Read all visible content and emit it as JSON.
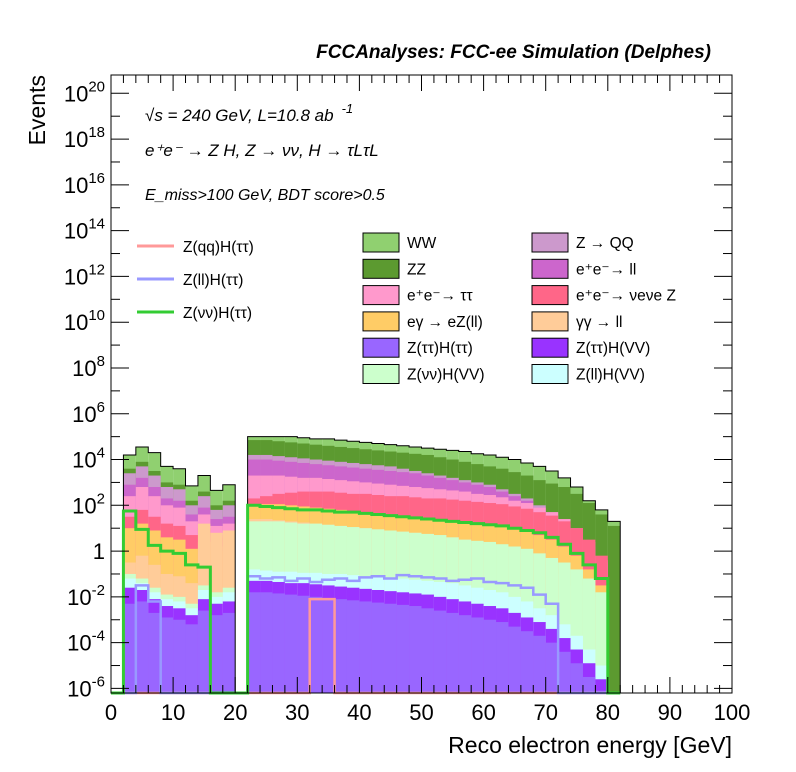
{
  "chart_data": {
    "type": "stacked-histogram",
    "header": "FCCAnalyses: FCC-ee Simulation (Delphes)",
    "xlabel": "Reco electron energy [GeV]",
    "ylabel": "Events",
    "xlim": [
      0,
      100
    ],
    "ylim_log10": [
      -6.2,
      20.8
    ],
    "yscale": "log",
    "bin_width": 2,
    "x_ticks": [
      0,
      10,
      20,
      30,
      40,
      50,
      60,
      70,
      80,
      90,
      100
    ],
    "x_tick_labels": [
      "0",
      "10",
      "20",
      "30",
      "40",
      "50",
      "60",
      "70",
      "80",
      "90",
      "100"
    ],
    "y_ticks": [
      {
        "exp": -6,
        "base": "10",
        "sup": "-6"
      },
      {
        "exp": -4,
        "base": "10",
        "sup": "-4"
      },
      {
        "exp": -2,
        "base": "10",
        "sup": "-2"
      },
      {
        "exp": 0,
        "base": "1",
        "sup": ""
      },
      {
        "exp": 2,
        "base": "10",
        "sup": "2"
      },
      {
        "exp": 4,
        "base": "10",
        "sup": "4"
      },
      {
        "exp": 6,
        "base": "10",
        "sup": "6"
      },
      {
        "exp": 8,
        "base": "10",
        "sup": "8"
      },
      {
        "exp": 10,
        "base": "10",
        "sup": "10"
      },
      {
        "exp": 12,
        "base": "10",
        "sup": "12"
      },
      {
        "exp": 14,
        "base": "10",
        "sup": "14"
      },
      {
        "exp": 16,
        "base": "10",
        "sup": "16"
      },
      {
        "exp": 18,
        "base": "10",
        "sup": "18"
      },
      {
        "exp": 20,
        "base": "10",
        "sup": "20"
      }
    ],
    "annotations": {
      "sqrt_s": "√s = 240 GeV, L=10.8 ab",
      "sqrt_s_sup": "-1",
      "process": "e⁺e⁻ → Z H, Z → νν, H → τLτL",
      "selection": "E_miss>100 GeV, BDT score>0.5"
    },
    "stack_envelope_log10": [
      -8,
      4.2,
      4.55,
      4.3,
      3.7,
      3.6,
      2.85,
      3.3,
      2.65,
      2.9,
      -8,
      5.0,
      5.0,
      5.0,
      5.0,
      4.95,
      4.9,
      4.9,
      4.85,
      4.8,
      4.75,
      4.7,
      4.65,
      4.6,
      4.55,
      4.5,
      4.45,
      4.4,
      4.35,
      4.25,
      4.2,
      4.1,
      4.0,
      3.85,
      3.7,
      3.5,
      3.2,
      2.8,
      2.2,
      1.8,
      1.3
    ],
    "series_layers": [
      {
        "name": "WW",
        "color": "#90d070",
        "top_log10": [
          -8,
          4.2,
          4.55,
          4.3,
          3.7,
          3.6,
          2.85,
          3.3,
          2.65,
          2.9,
          -8,
          5.0,
          5.0,
          5.0,
          5.0,
          4.95,
          4.9,
          4.9,
          4.85,
          4.8,
          4.75,
          4.7,
          4.65,
          4.6,
          4.55,
          4.5,
          4.45,
          4.4,
          4.35,
          4.25,
          4.2,
          4.1,
          4.0,
          3.85,
          3.7,
          3.5,
          3.2,
          2.8,
          2.2,
          1.8,
          1.3
        ]
      },
      {
        "name": "ZZ",
        "color": "#5c9a30",
        "top_log10": [
          -8,
          3.6,
          3.9,
          3.5,
          3.0,
          2.9,
          2.2,
          2.6,
          2.0,
          2.2,
          -8,
          4.85,
          4.85,
          4.8,
          4.75,
          4.7,
          4.65,
          4.6,
          4.55,
          4.5,
          4.45,
          4.4,
          4.35,
          4.3,
          4.25,
          4.2,
          4.1,
          4.0,
          3.9,
          3.8,
          3.7,
          3.6,
          3.45,
          3.3,
          3.1,
          2.95,
          2.8,
          2.5,
          2.1,
          1.6,
          1.1
        ]
      },
      {
        "name": "Z → QQ",
        "color": "#cc99cc",
        "top_log10": [
          -8,
          3.4,
          3.7,
          3.3,
          2.8,
          2.7,
          2.0,
          2.4,
          1.8,
          2.0,
          -8,
          4.2,
          4.2,
          4.15,
          4.1,
          4.05,
          4.0,
          3.95,
          3.9,
          3.85,
          3.8,
          3.75,
          3.7,
          3.6,
          3.5,
          3.4,
          3.3,
          3.2,
          3.1,
          3.0,
          2.9,
          2.7,
          2.5,
          2.3,
          2.0,
          1.7,
          1.3,
          0.8,
          0.2,
          -0.5,
          -8
        ]
      },
      {
        "name": "e⁺e⁻→ ll",
        "color": "#cc66cc",
        "top_log10": [
          -8,
          2.9,
          3.2,
          2.8,
          2.3,
          2.2,
          1.6,
          1.9,
          1.4,
          1.5,
          -8,
          4.0,
          4.0,
          3.95,
          3.9,
          3.85,
          3.8,
          3.75,
          3.7,
          3.65,
          3.6,
          3.55,
          3.5,
          3.45,
          3.4,
          3.3,
          3.2,
          3.1,
          3.0,
          2.9,
          2.8,
          2.6,
          2.4,
          2.2,
          1.9,
          1.6,
          1.2,
          0.7,
          0.1,
          -0.6,
          -8
        ]
      },
      {
        "name": "e⁺e⁻→ ττ",
        "color": "#ff99cc",
        "top_log10": [
          -8,
          2.4,
          2.8,
          2.4,
          2.0,
          1.9,
          1.3,
          1.6,
          1.1,
          1.2,
          -8,
          3.3,
          3.3,
          3.3,
          3.25,
          3.2,
          3.2,
          3.15,
          3.1,
          3.05,
          3.0,
          2.95,
          2.9,
          2.85,
          2.8,
          2.75,
          2.7,
          2.65,
          2.6,
          2.5,
          2.45,
          2.35,
          2.2,
          2.1,
          1.9,
          1.7,
          1.4,
          1.0,
          0.4,
          -0.4,
          -8
        ]
      },
      {
        "name": "e⁺e⁻→ νeνe Z",
        "color": "#ff6688",
        "top_log10": [
          -8,
          1.5,
          1.8,
          1.5,
          1.2,
          1.1,
          0.7,
          1.0,
          0.6,
          0.7,
          -8,
          2.3,
          2.4,
          2.5,
          2.55,
          2.6,
          2.6,
          2.6,
          2.55,
          2.5,
          2.5,
          2.45,
          2.4,
          2.4,
          2.35,
          2.3,
          2.3,
          2.25,
          2.2,
          2.15,
          2.1,
          2.05,
          1.95,
          1.85,
          1.7,
          1.55,
          1.3,
          1.0,
          0.5,
          -0.2,
          -8
        ]
      },
      {
        "name": "eγ → eZ(ll)",
        "color": "#ffcc66",
        "top_log10": [
          -8,
          1.0,
          1.2,
          0.9,
          0.6,
          0.5,
          0.1,
          0.4,
          0.0,
          0.2,
          -8,
          2.0,
          2.05,
          2.05,
          2.0,
          1.95,
          1.9,
          1.85,
          1.8,
          1.75,
          1.7,
          1.65,
          1.6,
          1.55,
          1.5,
          1.45,
          1.4,
          1.35,
          1.3,
          1.25,
          1.2,
          1.1,
          1.0,
          0.9,
          0.7,
          0.5,
          0.2,
          -0.2,
          -0.8,
          -1.5,
          -8
        ]
      },
      {
        "name": "γγ → ll",
        "color": "#ffcc99",
        "top_log10": [
          -8,
          -0.5,
          -0.2,
          -0.6,
          -1.0,
          -1.1,
          -1.4,
          1.2,
          0.8,
          0.9,
          -8,
          1.4,
          1.4,
          1.35,
          1.3,
          1.25,
          1.2,
          1.15,
          1.1,
          1.05,
          1.0,
          0.95,
          0.9,
          0.85,
          0.8,
          0.75,
          0.7,
          0.6,
          0.5,
          0.4,
          0.3,
          0.2,
          0.1,
          -0.1,
          -0.3,
          -0.6,
          -1.0,
          -1.5,
          -2.0,
          -2.8,
          -8
        ]
      },
      {
        "name": "Z(νν)H(VV)",
        "color": "#ccffcc",
        "top_log10": [
          -8,
          -1.0,
          -1.2,
          -1.6,
          -1.9,
          -2.0,
          -2.3,
          -1.5,
          -1.8,
          -1.6,
          -8,
          1.3,
          1.3,
          1.3,
          1.25,
          1.2,
          1.2,
          1.15,
          1.1,
          1.05,
          1.0,
          0.95,
          0.9,
          0.85,
          0.8,
          0.75,
          0.7,
          0.6,
          0.5,
          0.45,
          0.4,
          0.3,
          0.2,
          0.1,
          -0.1,
          -0.3,
          -0.5,
          -0.8,
          -1.2,
          -1.8,
          -8
        ]
      },
      {
        "name": "Z(ll)H(VV)",
        "color": "#ccffff",
        "top_log10": [
          -8,
          -1.2,
          -1.4,
          -1.8,
          -2.1,
          -2.2,
          -2.5,
          -1.7,
          -2.0,
          -1.8,
          -8,
          -0.8,
          -0.85,
          -0.9,
          -0.9,
          -0.95,
          -0.95,
          -1.0,
          -1.0,
          -1.05,
          -1.1,
          -1.1,
          -1.15,
          -1.2,
          -1.25,
          -1.3,
          -1.35,
          -1.4,
          -1.5,
          -1.6,
          -1.7,
          -1.8,
          -2.0,
          -2.2,
          -2.5,
          -2.8,
          -3.2,
          -3.7,
          -4.3,
          -5.0,
          -8
        ]
      },
      {
        "name": "Z(ττ)H(VV)",
        "color": "#9933ff",
        "top_log10": [
          -8,
          -1.6,
          -1.7,
          -2.1,
          -2.4,
          -2.5,
          -2.8,
          -2.1,
          -2.3,
          -2.2,
          -8,
          -1.3,
          -1.3,
          -1.35,
          -1.4,
          -1.4,
          -1.45,
          -1.5,
          -1.55,
          -1.6,
          -1.65,
          -1.7,
          -1.75,
          -1.8,
          -1.85,
          -1.9,
          -2.0,
          -2.1,
          -2.2,
          -2.3,
          -2.4,
          -2.5,
          -2.7,
          -2.9,
          -3.1,
          -3.4,
          -3.8,
          -4.3,
          -4.9,
          -5.6,
          -8
        ]
      },
      {
        "name": "Z(ττ)H(ττ)",
        "color": "#9966ff",
        "top_log10": [
          -8,
          -2.3,
          -2.2,
          -2.7,
          -2.9,
          -3.0,
          -3.2,
          -2.6,
          -2.8,
          -2.7,
          -8,
          -1.8,
          -1.8,
          -1.85,
          -1.9,
          -1.95,
          -2.0,
          -2.05,
          -2.1,
          -2.15,
          -2.2,
          -2.25,
          -2.3,
          -2.35,
          -2.4,
          -2.5,
          -2.6,
          -2.7,
          -2.8,
          -2.9,
          -3.0,
          -3.1,
          -3.3,
          -3.5,
          -3.7,
          -4.0,
          -4.4,
          -4.9,
          -5.5,
          -6.1,
          -8
        ]
      }
    ],
    "overlay_lines": [
      {
        "name": "Z(qq)H(ττ)",
        "color": "#ff9999"
      },
      {
        "name": "Z(ll)H(ττ)",
        "color": "#9999ff"
      },
      {
        "name": "Z(νν)H(ττ)",
        "color": "#33cc33"
      }
    ],
    "znn_htt_log10": [
      -8,
      1.75,
      0.95,
      0.25,
      0.0,
      -0.1,
      -0.6,
      -0.7,
      -8,
      -8,
      -8,
      2.0,
      1.95,
      1.9,
      1.85,
      1.8,
      1.8,
      1.75,
      1.7,
      1.7,
      1.65,
      1.6,
      1.55,
      1.5,
      1.45,
      1.4,
      1.35,
      1.3,
      1.25,
      1.2,
      1.15,
      1.1,
      1.0,
      0.9,
      0.8,
      0.6,
      0.3,
      -0.1,
      -0.6,
      -1.2,
      -8
    ],
    "zll_htt_log10": [
      -8,
      -8,
      -1.5,
      -2.2,
      -8,
      -8,
      -8,
      -8,
      -8,
      -8,
      -8,
      -1.1,
      -1.2,
      -1.15,
      -1.3,
      -1.2,
      -1.35,
      -1.25,
      -1.2,
      -1.3,
      -1.15,
      -1.1,
      -1.2,
      -1.05,
      -1.1,
      -1.15,
      -1.2,
      -1.3,
      -1.25,
      -1.2,
      -1.35,
      -1.4,
      -1.5,
      -1.6,
      -1.9,
      -2.3,
      -8,
      -8,
      -8,
      -8,
      -8
    ],
    "zqq_htt_log10": [
      -8,
      -8,
      -8,
      -8,
      -8,
      -8,
      -8,
      -8,
      -8,
      -8,
      -8,
      -8,
      -8,
      -8,
      -8,
      -8,
      -2.1,
      -2.1,
      -8,
      -8,
      -8,
      -8,
      -8,
      -8,
      -8,
      -8,
      -8,
      -8,
      -8,
      -8,
      -8,
      -8,
      -8,
      -8,
      -8,
      -8,
      -8,
      -8,
      -8,
      -8,
      -8
    ]
  }
}
